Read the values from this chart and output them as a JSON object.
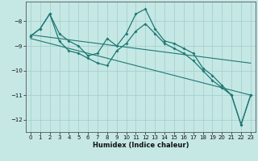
{
  "xlabel": "Humidex (Indice chaleur)",
  "background_color": "#c5e8e5",
  "grid_color": "#a0ccca",
  "line_color": "#1f7872",
  "x_values": [
    0,
    1,
    2,
    3,
    4,
    5,
    6,
    7,
    8,
    9,
    10,
    11,
    12,
    13,
    14,
    15,
    16,
    17,
    18,
    19,
    20,
    21,
    22,
    23
  ],
  "series_main": [
    -8.6,
    -8.3,
    -7.7,
    -8.5,
    -8.8,
    -9.0,
    -9.4,
    -9.3,
    -8.7,
    -9.0,
    -8.5,
    -7.7,
    -7.5,
    -8.3,
    -8.8,
    -8.9,
    -9.1,
    -9.3,
    -9.9,
    -10.2,
    -10.6,
    -11.0,
    -12.2,
    -11.0
  ],
  "series_low": [
    -8.6,
    -8.3,
    -7.7,
    -8.8,
    -9.2,
    -9.3,
    -9.5,
    -9.7,
    -9.8,
    -9.2,
    -8.9,
    -8.4,
    -8.1,
    -8.5,
    -8.9,
    -9.1,
    -9.3,
    -9.6,
    -10.0,
    -10.4,
    -10.7,
    -11.0,
    -12.2,
    -11.0
  ],
  "trend1": [
    -8.55,
    -8.6,
    -8.65,
    -8.7,
    -8.75,
    -8.8,
    -8.85,
    -8.9,
    -8.95,
    -9.0,
    -9.05,
    -9.1,
    -9.15,
    -9.2,
    -9.25,
    -9.3,
    -9.35,
    -9.4,
    -9.45,
    -9.5,
    -9.55,
    -9.6,
    -9.65,
    -9.7
  ],
  "trend2": [
    -8.7,
    -8.8,
    -8.9,
    -9.0,
    -9.1,
    -9.2,
    -9.3,
    -9.4,
    -9.5,
    -9.6,
    -9.7,
    -9.8,
    -9.9,
    -10.0,
    -10.1,
    -10.2,
    -10.3,
    -10.4,
    -10.5,
    -10.6,
    -10.7,
    -10.8,
    -10.9,
    -11.0
  ],
  "ylim": [
    -12.5,
    -7.2
  ],
  "xlim": [
    -0.5,
    23.5
  ],
  "yticks": [
    -12,
    -11,
    -10,
    -9,
    -8
  ],
  "xticks": [
    0,
    1,
    2,
    3,
    4,
    5,
    6,
    7,
    8,
    9,
    10,
    11,
    12,
    13,
    14,
    15,
    16,
    17,
    18,
    19,
    20,
    21,
    22,
    23
  ]
}
